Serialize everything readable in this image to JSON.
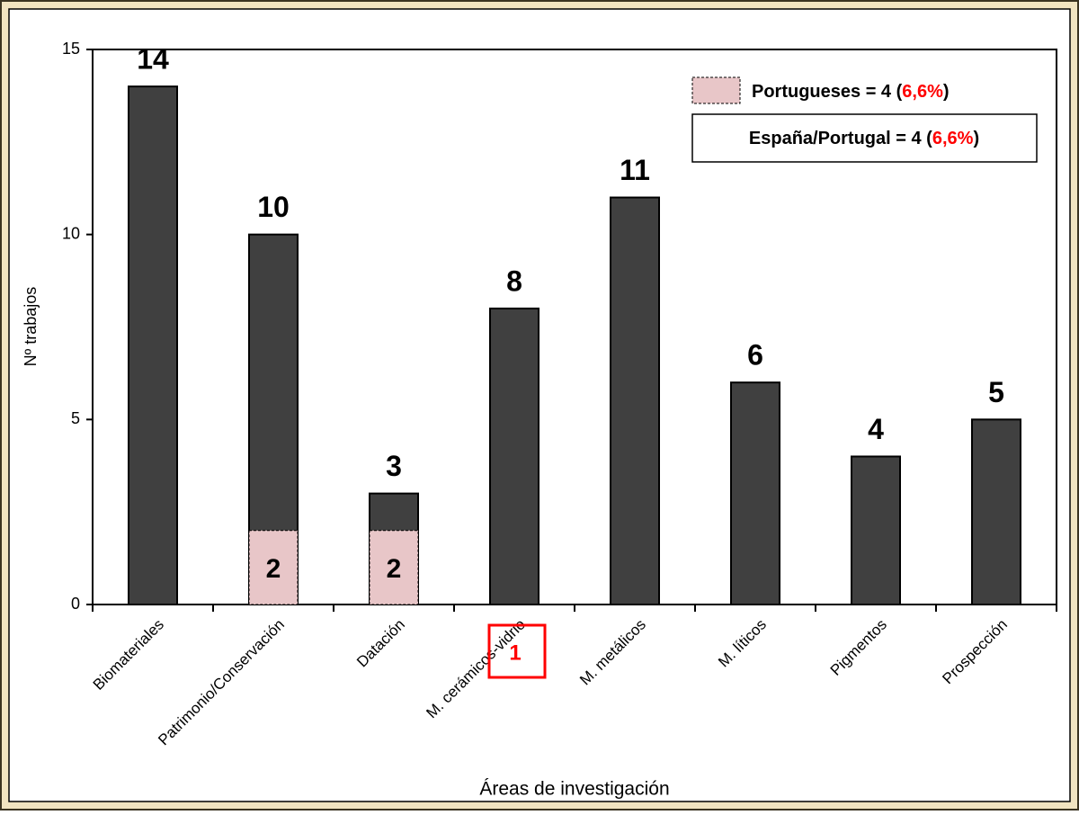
{
  "chart_data": {
    "type": "bar",
    "x_label": "Áreas de investigación",
    "y_label": "Nº  trabajos",
    "categories": [
      "Biomateriales",
      "Patrimonio/Conservación",
      "Datación",
      "M. cerámicos-vidrio",
      "M. metálicos",
      "M. líticos",
      "Pigmentos",
      "Prospección"
    ],
    "series": [
      {
        "color": "#404040",
        "values": [
          14,
          10,
          3,
          8,
          11,
          6,
          4,
          5
        ]
      },
      {
        "color": "#e8c6c8",
        "values": [
          null,
          2,
          2,
          null,
          null,
          null,
          null,
          null
        ]
      }
    ],
    "legend": [
      {
        "prefix": "Portugueses = 4 (",
        "highlight": "6,6%",
        "suffix": ")"
      },
      {
        "prefix": "España/Portugal = 4 (",
        "highlight": "6,6%",
        "suffix": ")"
      }
    ],
    "highlight_color": "#ff0000",
    "annotation": "1",
    "ylim": [
      0,
      15
    ],
    "yticks": [
      0,
      5,
      10,
      15
    ]
  }
}
